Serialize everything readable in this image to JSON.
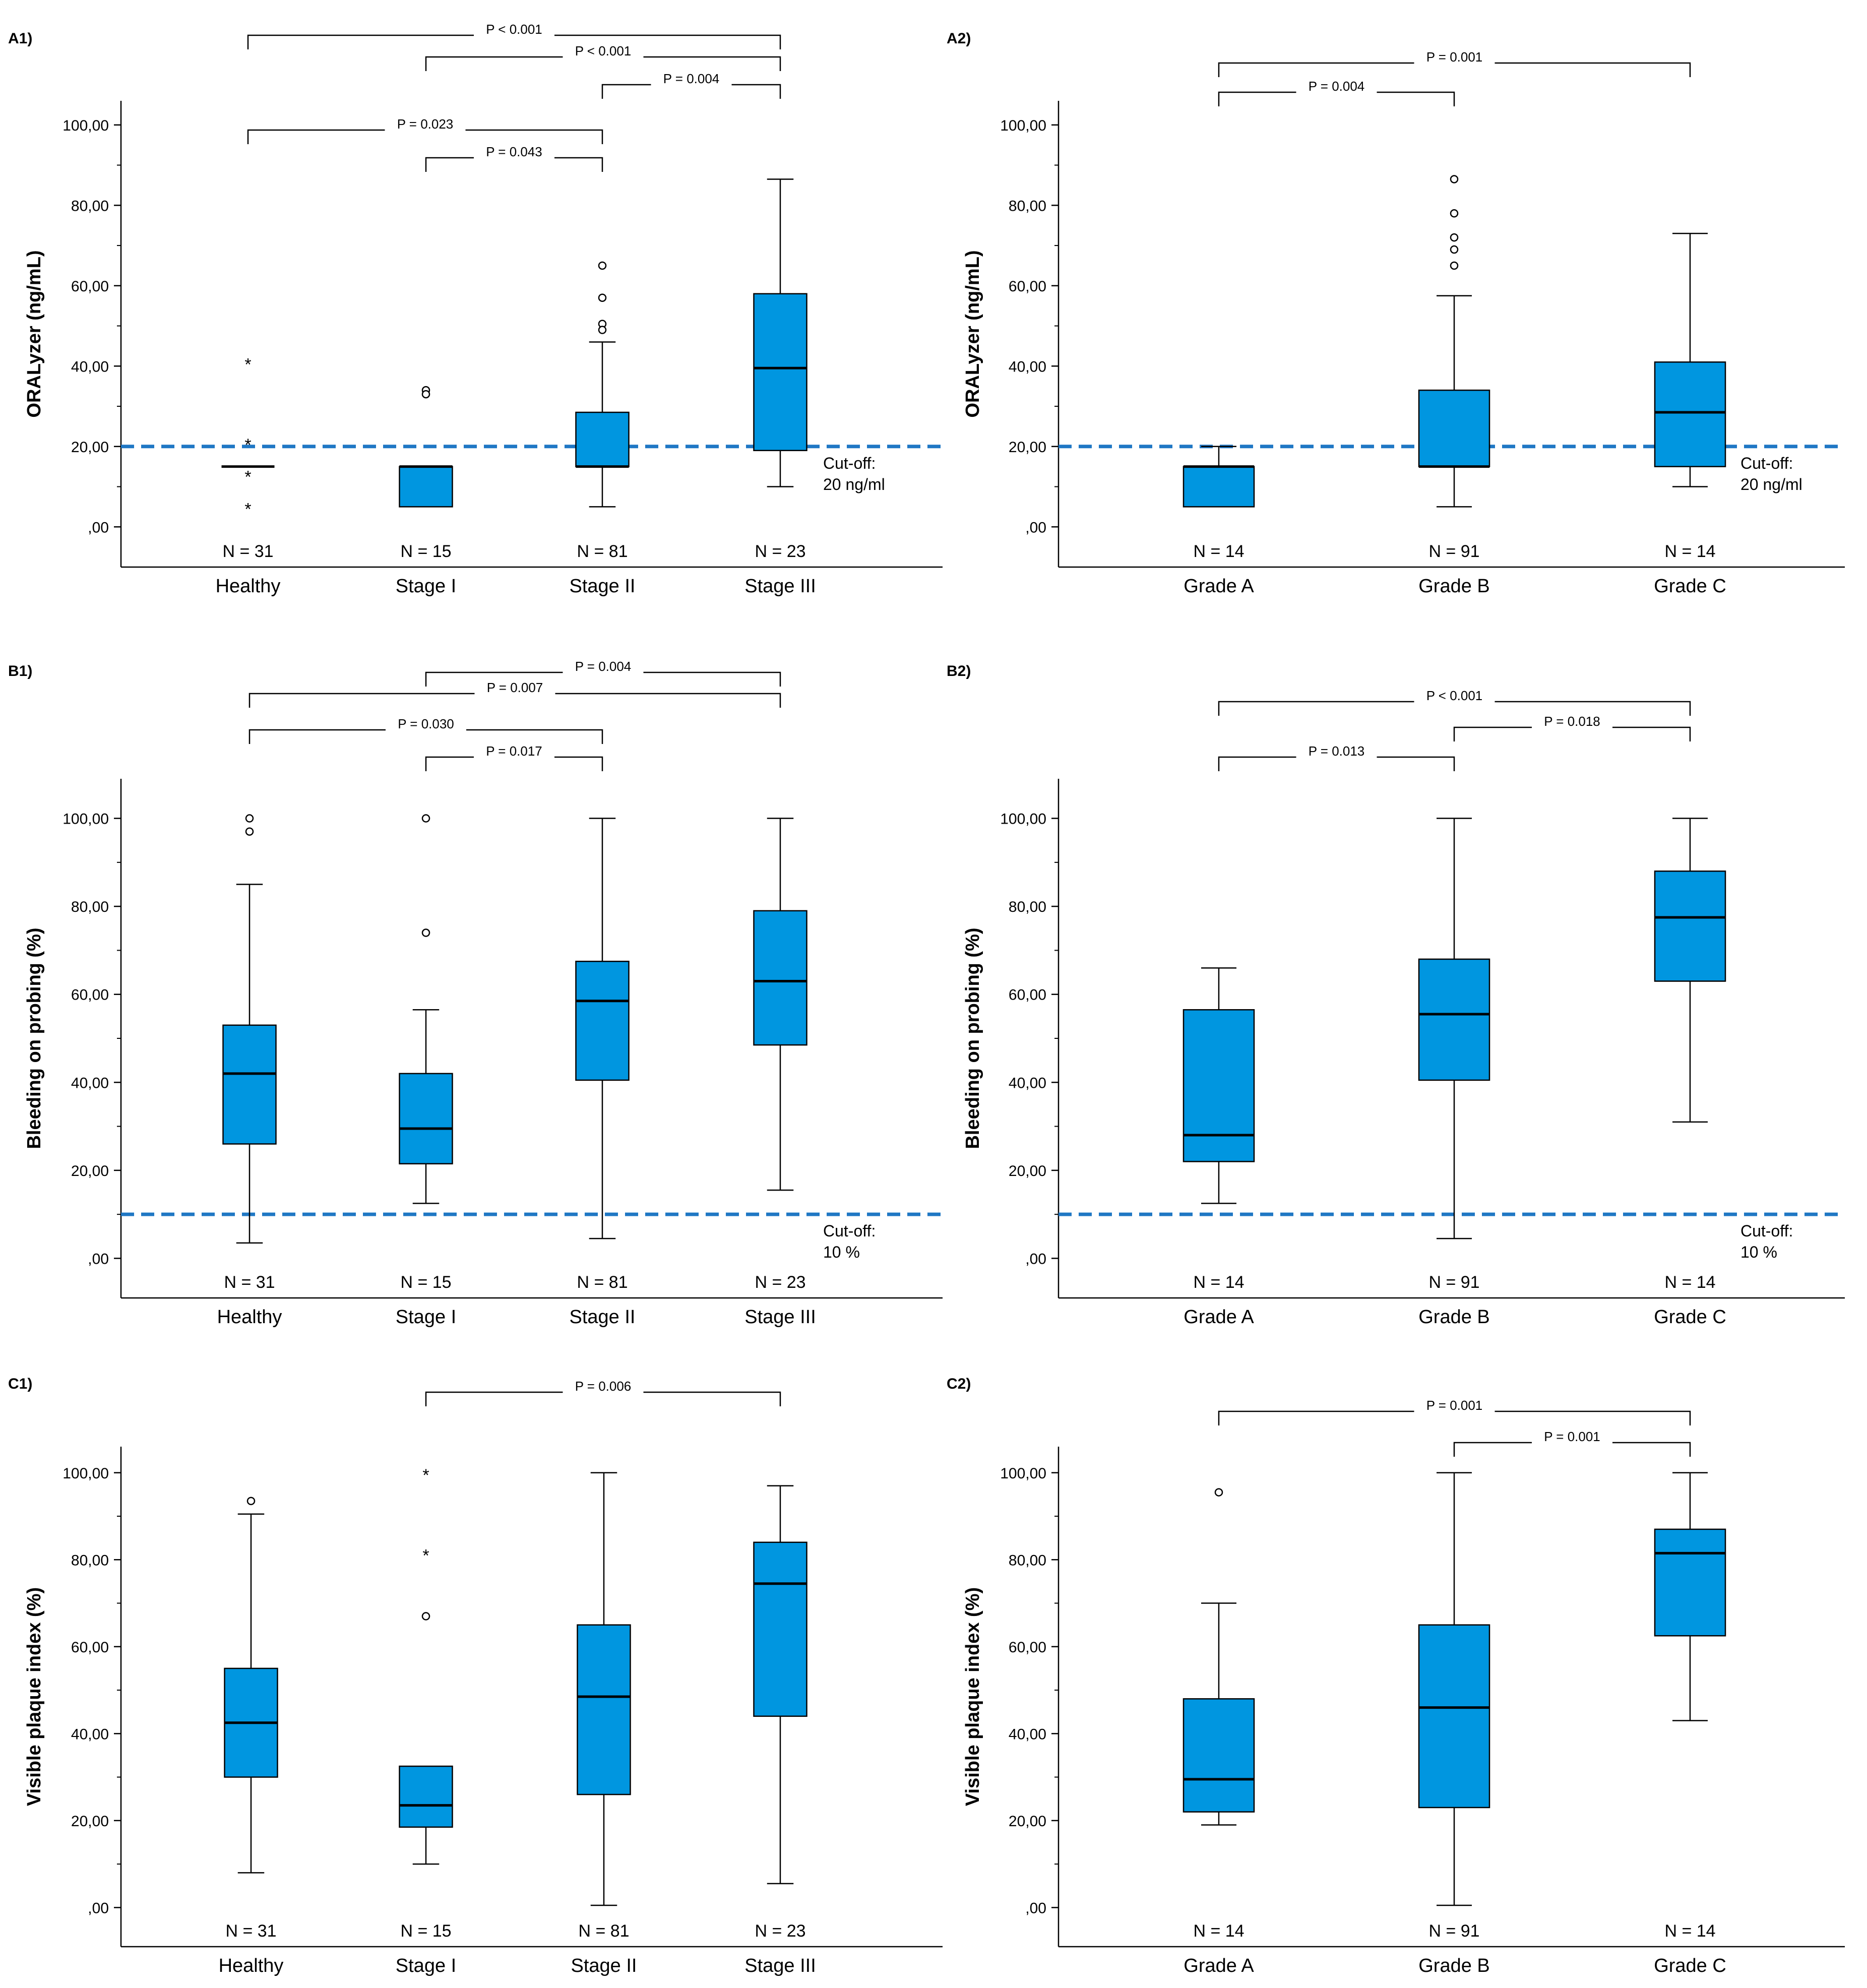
{
  "colors": {
    "box": "#0096e0",
    "stroke": "#000000",
    "cutoff": "#1f77c4"
  },
  "chart_data": [
    {
      "panel": "A1)",
      "type": "boxplot",
      "ylabel": "ORALyzer (ng/mL)",
      "ylim": [
        -10,
        106
      ],
      "yticks": [
        0,
        20,
        40,
        60,
        80,
        100
      ],
      "ytick_labels": [
        ",00",
        "20,00",
        "40,00",
        "60,00",
        "80,00",
        "100,00"
      ],
      "categories": [
        "Healthy",
        "Stage I",
        "Stage II",
        "Stage III"
      ],
      "n_labels": [
        "N = 31",
        "N = 15",
        "N = 81",
        "N = 23"
      ],
      "boxes": [
        {
          "q1": 15,
          "median": 15,
          "q3": 15,
          "low": 15,
          "high": 15,
          "outliers": [],
          "extremes": [
            41,
            21,
            13,
            5
          ]
        },
        {
          "q1": 5,
          "median": 15,
          "q3": 15,
          "low": 5,
          "high": 15,
          "outliers": [
            34,
            33
          ],
          "extremes": []
        },
        {
          "q1": 15,
          "median": 15,
          "q3": 28.5,
          "low": 5,
          "high": 46,
          "outliers": [
            65,
            57,
            50.5,
            49
          ],
          "extremes": []
        },
        {
          "q1": 19,
          "median": 39.5,
          "q3": 58,
          "low": 10,
          "high": 86.5,
          "outliers": [],
          "extremes": []
        }
      ],
      "cutoff": {
        "value": 20,
        "line1": "Cut-off:",
        "line2": "20 ng/ml"
      },
      "brackets": [
        {
          "from": 0,
          "to": 3,
          "level": 4,
          "label": "P < 0.001"
        },
        {
          "from": 1,
          "to": 3,
          "level": 3,
          "label": "P < 0.001"
        },
        {
          "from": 2,
          "to": 3,
          "level": 2,
          "label": "P = 0.004"
        },
        {
          "from": 0,
          "to": 2,
          "level": 1,
          "label": "P = 0.023"
        },
        {
          "from": 1,
          "to": 2,
          "level": 0,
          "label": "P = 0.043"
        }
      ]
    },
    {
      "panel": "A2)",
      "type": "boxplot",
      "ylabel": "ORALyzer (ng/mL)",
      "ylim": [
        -10,
        106
      ],
      "yticks": [
        0,
        20,
        40,
        60,
        80,
        100
      ],
      "ytick_labels": [
        ",00",
        "20,00",
        "40,00",
        "60,00",
        "80,00",
        "100,00"
      ],
      "categories": [
        "Grade A",
        "Grade B",
        "Grade C"
      ],
      "n_labels": [
        "N = 14",
        "N = 91",
        "N = 14"
      ],
      "boxes": [
        {
          "q1": 5,
          "median": 15,
          "q3": 15,
          "low": 5,
          "high": 20,
          "outliers": [],
          "extremes": []
        },
        {
          "q1": 15,
          "median": 15,
          "q3": 34,
          "low": 5,
          "high": 57.5,
          "outliers": [
            86.5,
            78,
            72,
            69,
            65
          ],
          "extremes": []
        },
        {
          "q1": 15,
          "median": 28.5,
          "q3": 41,
          "low": 10,
          "high": 73,
          "outliers": [],
          "extremes": []
        }
      ],
      "cutoff": {
        "value": 20,
        "line1": "Cut-off:",
        "line2": "20 ng/ml"
      },
      "brackets": [
        {
          "from": 0,
          "to": 2,
          "level": 1,
          "label": "P = 0.001"
        },
        {
          "from": 0,
          "to": 1,
          "level": 0,
          "label": "P = 0.004"
        }
      ]
    },
    {
      "panel": "B1)",
      "type": "boxplot",
      "ylabel": "Bleeding on probing (%)",
      "ylim": [
        -9,
        109
      ],
      "yticks": [
        0,
        20,
        40,
        60,
        80,
        100
      ],
      "ytick_labels": [
        ",00",
        "20,00",
        "40,00",
        "60,00",
        "80,00",
        "100,00"
      ],
      "categories": [
        "Healthy",
        "Stage I",
        "Stage II",
        "Stage III"
      ],
      "n_labels": [
        "N = 31",
        "N = 15",
        "N = 81",
        "N = 23"
      ],
      "boxes": [
        {
          "q1": 26,
          "median": 42,
          "q3": 53,
          "low": 3.5,
          "high": 85,
          "outliers": [
            100,
            97
          ],
          "extremes": []
        },
        {
          "q1": 21.5,
          "median": 29.5,
          "q3": 42,
          "low": 12.5,
          "high": 56.5,
          "outliers": [
            100,
            74
          ],
          "extremes": []
        },
        {
          "q1": 40.5,
          "median": 58.5,
          "q3": 67.5,
          "low": 4.5,
          "high": 100,
          "outliers": [],
          "extremes": []
        },
        {
          "q1": 48.5,
          "median": 63,
          "q3": 79,
          "low": 15.5,
          "high": 100,
          "outliers": [],
          "extremes": []
        }
      ],
      "cutoff": {
        "value": 10,
        "line1": "Cut-off:",
        "line2": "10 %"
      },
      "brackets": [
        {
          "from": 1,
          "to": 3,
          "level": 3,
          "label": "P = 0.004"
        },
        {
          "from": 0,
          "to": 3,
          "level": 2,
          "label": "P = 0.007"
        },
        {
          "from": 0,
          "to": 2,
          "level": 1,
          "label": "P = 0.030"
        },
        {
          "from": 1,
          "to": 2,
          "level": 0,
          "label": "P = 0.017"
        }
      ]
    },
    {
      "panel": "B2)",
      "type": "boxplot",
      "ylabel": "Bleeding on probing (%)",
      "ylim": [
        -9,
        109
      ],
      "yticks": [
        0,
        20,
        40,
        60,
        80,
        100
      ],
      "ytick_labels": [
        ",00",
        "20,00",
        "40,00",
        "60,00",
        "80,00",
        "100,00"
      ],
      "categories": [
        "Grade A",
        "Grade B",
        "Grade C"
      ],
      "n_labels": [
        "N = 14",
        "N = 91",
        "N = 14"
      ],
      "boxes": [
        {
          "q1": 22,
          "median": 28,
          "q3": 56.5,
          "low": 12.5,
          "high": 66,
          "outliers": [],
          "extremes": []
        },
        {
          "q1": 40.5,
          "median": 55.5,
          "q3": 68,
          "low": 4.5,
          "high": 100,
          "outliers": [],
          "extremes": []
        },
        {
          "q1": 63,
          "median": 77.5,
          "q3": 88,
          "low": 31,
          "high": 100,
          "outliers": [],
          "extremes": []
        }
      ],
      "cutoff": {
        "value": 10,
        "line1": "Cut-off:",
        "line2": "10 %"
      },
      "brackets": [
        {
          "from": 0,
          "to": 2,
          "level": 2,
          "label": "P < 0.001"
        },
        {
          "from": 1,
          "to": 2,
          "level": 1,
          "label": "P = 0.018"
        },
        {
          "from": 0,
          "to": 1,
          "level": 0,
          "label": "P = 0.013"
        }
      ]
    },
    {
      "panel": "C1)",
      "type": "boxplot",
      "ylabel": "Visible plaque index (%)",
      "ylim": [
        -9,
        106
      ],
      "yticks": [
        0,
        20,
        40,
        60,
        80,
        100
      ],
      "ytick_labels": [
        ",00",
        "20,00",
        "40,00",
        "60,00",
        "80,00",
        "100,00"
      ],
      "categories": [
        "Healthy",
        "Stage I",
        "Stage II",
        "Stage III"
      ],
      "n_labels": [
        "N = 31",
        "N = 15",
        "N = 81",
        "N = 23"
      ],
      "boxes": [
        {
          "q1": 30,
          "median": 42.5,
          "q3": 55,
          "low": 8,
          "high": 90.5,
          "outliers": [
            93.5
          ],
          "extremes": []
        },
        {
          "q1": 18.5,
          "median": 23.5,
          "q3": 32.5,
          "low": 10,
          "high": 32.5,
          "outliers": [
            67
          ],
          "extremes": [
            100,
            81.5
          ]
        },
        {
          "q1": 26,
          "median": 48.5,
          "q3": 65,
          "low": 0.5,
          "high": 100,
          "outliers": [],
          "extremes": []
        },
        {
          "q1": 44,
          "median": 74.5,
          "q3": 84,
          "low": 5.5,
          "high": 97,
          "outliers": [],
          "extremes": []
        }
      ],
      "cutoff": null,
      "brackets": [
        {
          "from": 1,
          "to": 3,
          "level": 0,
          "label": "P = 0.006"
        }
      ]
    },
    {
      "panel": "C2)",
      "type": "boxplot",
      "ylabel": "Visible plaque index (%)",
      "ylim": [
        -9,
        106
      ],
      "yticks": [
        0,
        20,
        40,
        60,
        80,
        100
      ],
      "ytick_labels": [
        ",00",
        "20,00",
        "40,00",
        "60,00",
        "80,00",
        "100,00"
      ],
      "categories": [
        "Grade A",
        "Grade B",
        "Grade C"
      ],
      "n_labels": [
        "N = 14",
        "N = 91",
        "N = 14"
      ],
      "boxes": [
        {
          "q1": 22,
          "median": 29.5,
          "q3": 48,
          "low": 19,
          "high": 70,
          "outliers": [
            95.5
          ],
          "extremes": []
        },
        {
          "q1": 23,
          "median": 46,
          "q3": 65,
          "low": 0.5,
          "high": 100,
          "outliers": [],
          "extremes": []
        },
        {
          "q1": 62.5,
          "median": 81.5,
          "q3": 87,
          "low": 43,
          "high": 100,
          "outliers": [],
          "extremes": []
        }
      ],
      "cutoff": null,
      "brackets": [
        {
          "from": 0,
          "to": 2,
          "level": 1,
          "label": "P = 0.001"
        },
        {
          "from": 1,
          "to": 2,
          "level": 0,
          "label": "P = 0.001"
        }
      ]
    }
  ]
}
